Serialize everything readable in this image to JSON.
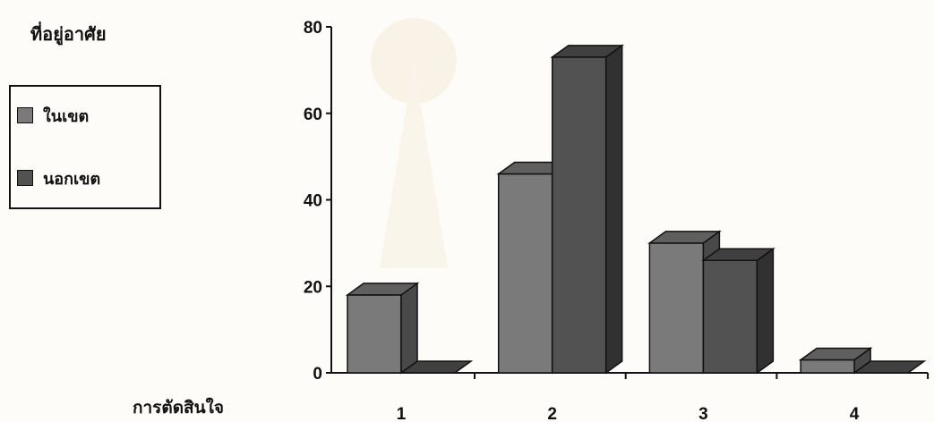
{
  "chart_data": {
    "type": "bar",
    "style": "3d",
    "categories": [
      "1",
      "2",
      "3",
      "4"
    ],
    "series": [
      {
        "name": "ในเขต",
        "values": [
          18,
          46,
          30,
          3
        ],
        "color": "#7a7a7a"
      },
      {
        "name": "นอกเขต",
        "values": [
          0,
          73,
          26,
          0
        ],
        "color": "#525252"
      }
    ],
    "xlabel": "การตัดสินใจ",
    "ylabel": "",
    "ylim": [
      0,
      80
    ],
    "yticks": [
      0,
      20,
      40,
      60,
      80
    ],
    "grid": false,
    "legend": {
      "title": "ที่อยู่อาศัย",
      "position": "left"
    }
  }
}
